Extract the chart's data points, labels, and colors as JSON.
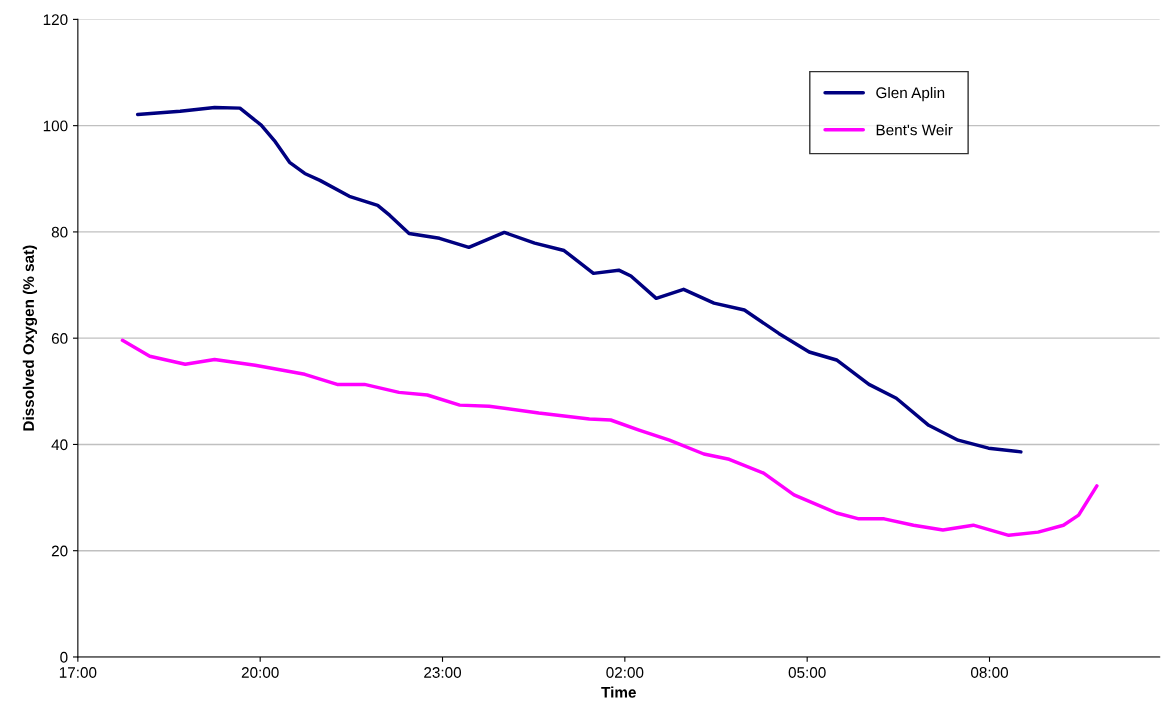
{
  "chart_data": {
    "type": "line",
    "xlabel": "Time",
    "ylabel": "Dissolved Oxygen (% sat)",
    "xlim": [
      "2000-01-01T17:00",
      "2000-01-02T10:48"
    ],
    "xticks": [
      {
        "value": "2000-01-01T17:00",
        "label": "17:00"
      },
      {
        "value": "2000-01-01T20:00",
        "label": "20:00"
      },
      {
        "value": "2000-01-01T23:00",
        "label": "23:00"
      },
      {
        "value": "2000-01-02T02:00",
        "label": "02:00"
      },
      {
        "value": "2000-01-02T05:00",
        "label": "05:00"
      },
      {
        "value": "2000-01-02T08:00",
        "label": "08:00"
      }
    ],
    "ylim": [
      0,
      120
    ],
    "yticks": [
      0,
      20,
      40,
      60,
      80,
      100,
      120
    ],
    "grid": "y",
    "legend": "top right",
    "marker": "none",
    "line_style": "solid",
    "series": [
      {
        "name": "Glen Aplin",
        "color": "#000080",
        "x": [
          "2000-01-01T17:59",
          "2000-01-01T18:41",
          "2000-01-01T19:15",
          "2000-01-01T19:40",
          "2000-01-01T20:01",
          "2000-01-01T20:14",
          "2000-01-01T20:29",
          "2000-01-01T20:44",
          "2000-01-01T20:59",
          "2000-01-01T21:28",
          "2000-01-01T21:56",
          "2000-01-01T22:08",
          "2000-01-01T22:27",
          "2000-01-01T22:57",
          "2000-01-01T23:26",
          "2000-01-02T00:01",
          "2000-01-02T00:31",
          "2000-01-02T01:00",
          "2000-01-02T01:29",
          "2000-01-02T01:54",
          "2000-01-02T02:06",
          "2000-01-02T02:31",
          "2000-01-02T02:58",
          "2000-01-02T03:28",
          "2000-01-02T03:58",
          "2000-01-02T04:32",
          "2000-01-02T05:02",
          "2000-01-02T05:29",
          "2000-01-02T06:01",
          "2000-01-02T06:28",
          "2000-01-02T07:00",
          "2000-01-02T07:29",
          "2000-01-02T07:59",
          "2000-01-02T08:31"
        ],
        "values": [
          102.1,
          102.7,
          103.4,
          103.3,
          100.1,
          97.2,
          93.1,
          91.0,
          89.7,
          86.7,
          85.0,
          83.1,
          79.7,
          78.8,
          77.1,
          79.9,
          77.9,
          76.5,
          72.2,
          72.8,
          71.7,
          67.5,
          69.2,
          66.6,
          65.3,
          60.9,
          57.4,
          55.9,
          51.3,
          48.7,
          43.6,
          40.8,
          39.3,
          38.6
        ]
      },
      {
        "name": "Bent's Weir",
        "color": "#ff00ff",
        "x": [
          "2000-01-01T17:44",
          "2000-01-01T18:11",
          "2000-01-01T18:46",
          "2000-01-01T19:15",
          "2000-01-01T19:55",
          "2000-01-01T20:44",
          "2000-01-01T21:16",
          "2000-01-01T21:43",
          "2000-01-01T22:17",
          "2000-01-01T22:45",
          "2000-01-01T23:17",
          "2000-01-01T23:46",
          "2000-01-02T00:35",
          "2000-01-02T01:25",
          "2000-01-02T01:46",
          "2000-01-02T02:14",
          "2000-01-02T02:44",
          "2000-01-02T03:18",
          "2000-01-02T03:43",
          "2000-01-02T04:17",
          "2000-01-02T04:47",
          "2000-01-02T05:29",
          "2000-01-02T05:51",
          "2000-01-02T06:16",
          "2000-01-02T06:45",
          "2000-01-02T07:14",
          "2000-01-02T07:44",
          "2000-01-02T08:19",
          "2000-01-02T08:48",
          "2000-01-02T09:13",
          "2000-01-02T09:28",
          "2000-01-02T09:46"
        ],
        "values": [
          59.6,
          56.6,
          55.1,
          56.0,
          54.9,
          53.2,
          51.3,
          51.3,
          49.8,
          49.3,
          47.4,
          47.2,
          45.9,
          44.8,
          44.6,
          42.7,
          40.8,
          38.2,
          37.2,
          34.6,
          30.5,
          27.1,
          26.0,
          26.0,
          24.8,
          23.9,
          24.8,
          22.9,
          23.5,
          24.8,
          26.7,
          32.2
        ]
      }
    ]
  }
}
